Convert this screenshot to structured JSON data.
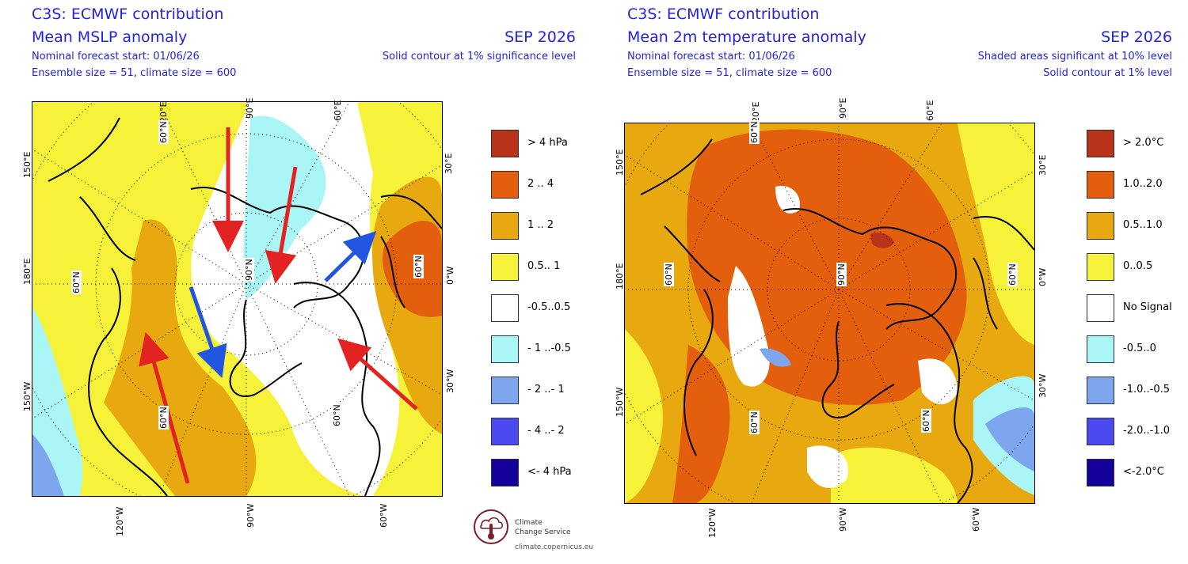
{
  "left": {
    "title_line1": "C3S: ECMWF contribution",
    "title_line2": "Mean MSLP anomaly",
    "info_line1": "Nominal forecast start: 01/06/26",
    "info_line2": "Ensemble size = 51, climate size = 600",
    "period": "SEP 2026",
    "note_line1": "Solid contour at 1% significance level",
    "lon_labels_top": [
      "150°E",
      "120°E",
      "90°E",
      "60°E",
      "30°E"
    ],
    "lon_labels_side": [
      "180°E",
      "150°W",
      "0°W",
      "30°W"
    ],
    "lon_labels_bottom": [
      "120°W",
      "90°W",
      "60°W"
    ],
    "lat_labels": [
      "60°N",
      "60°N",
      "90°N",
      "60°N",
      "60°N",
      "60°N"
    ],
    "legend": [
      {
        "label": ">  4 hPa",
        "color": "#b8331a"
      },
      {
        "label": "2 .. 4",
        "color": "#e35f0e"
      },
      {
        "label": "1 .. 2",
        "color": "#e8a80f"
      },
      {
        "label": "0.5.. 1",
        "color": "#f6f23a"
      },
      {
        "label": "-0.5..0.5",
        "color": "#ffffff"
      },
      {
        "label": "- 1 ..-0.5",
        "color": "#aaf5f5"
      },
      {
        "label": "- 2 ..- 1",
        "color": "#7ea6ee"
      },
      {
        "label": "- 4 ..- 2",
        "color": "#4a4af0"
      },
      {
        "label": "<- 4 hPa",
        "color": "#14009a"
      }
    ]
  },
  "right": {
    "title_line1": "C3S: ECMWF contribution",
    "title_line2": "Mean 2m temperature anomaly",
    "info_line1": "Nominal forecast start: 01/06/26",
    "info_line2": "Ensemble size = 51, climate size = 600",
    "period": "SEP 2026",
    "note_line1": "Shaded areas significant at 10% level",
    "note_line2": "Solid contour at 1% level",
    "lon_labels_top": [
      "150°E",
      "120°E",
      "90°E",
      "60°E",
      "30°E"
    ],
    "lon_labels_side": [
      "180°E",
      "150°W",
      "0°W",
      "30°W"
    ],
    "lon_labels_bottom": [
      "120°W",
      "90°W",
      "60°W"
    ],
    "lat_labels": [
      "60°N",
      "60°N",
      "90°N",
      "60°N",
      "60°N",
      "60°N"
    ],
    "legend": [
      {
        "label": "> 2.0°C",
        "color": "#b8331a"
      },
      {
        "label": "1.0..2.0",
        "color": "#e35f0e"
      },
      {
        "label": "0.5..1.0",
        "color": "#e8a80f"
      },
      {
        "label": "0..0.5",
        "color": "#f6f23a"
      },
      {
        "label": "No Signal",
        "color": "#ffffff"
      },
      {
        "label": "-0.5..0",
        "color": "#aaf5f5"
      },
      {
        "label": "-1.0..-0.5",
        "color": "#7ea6ee"
      },
      {
        "label": "-2.0..-1.0",
        "color": "#4a4af0"
      },
      {
        "label": "<-2.0°C",
        "color": "#14009a"
      }
    ]
  },
  "logo": {
    "line1": "Climate",
    "line2": "Change Service",
    "url": "climate.copernicus.eu"
  }
}
